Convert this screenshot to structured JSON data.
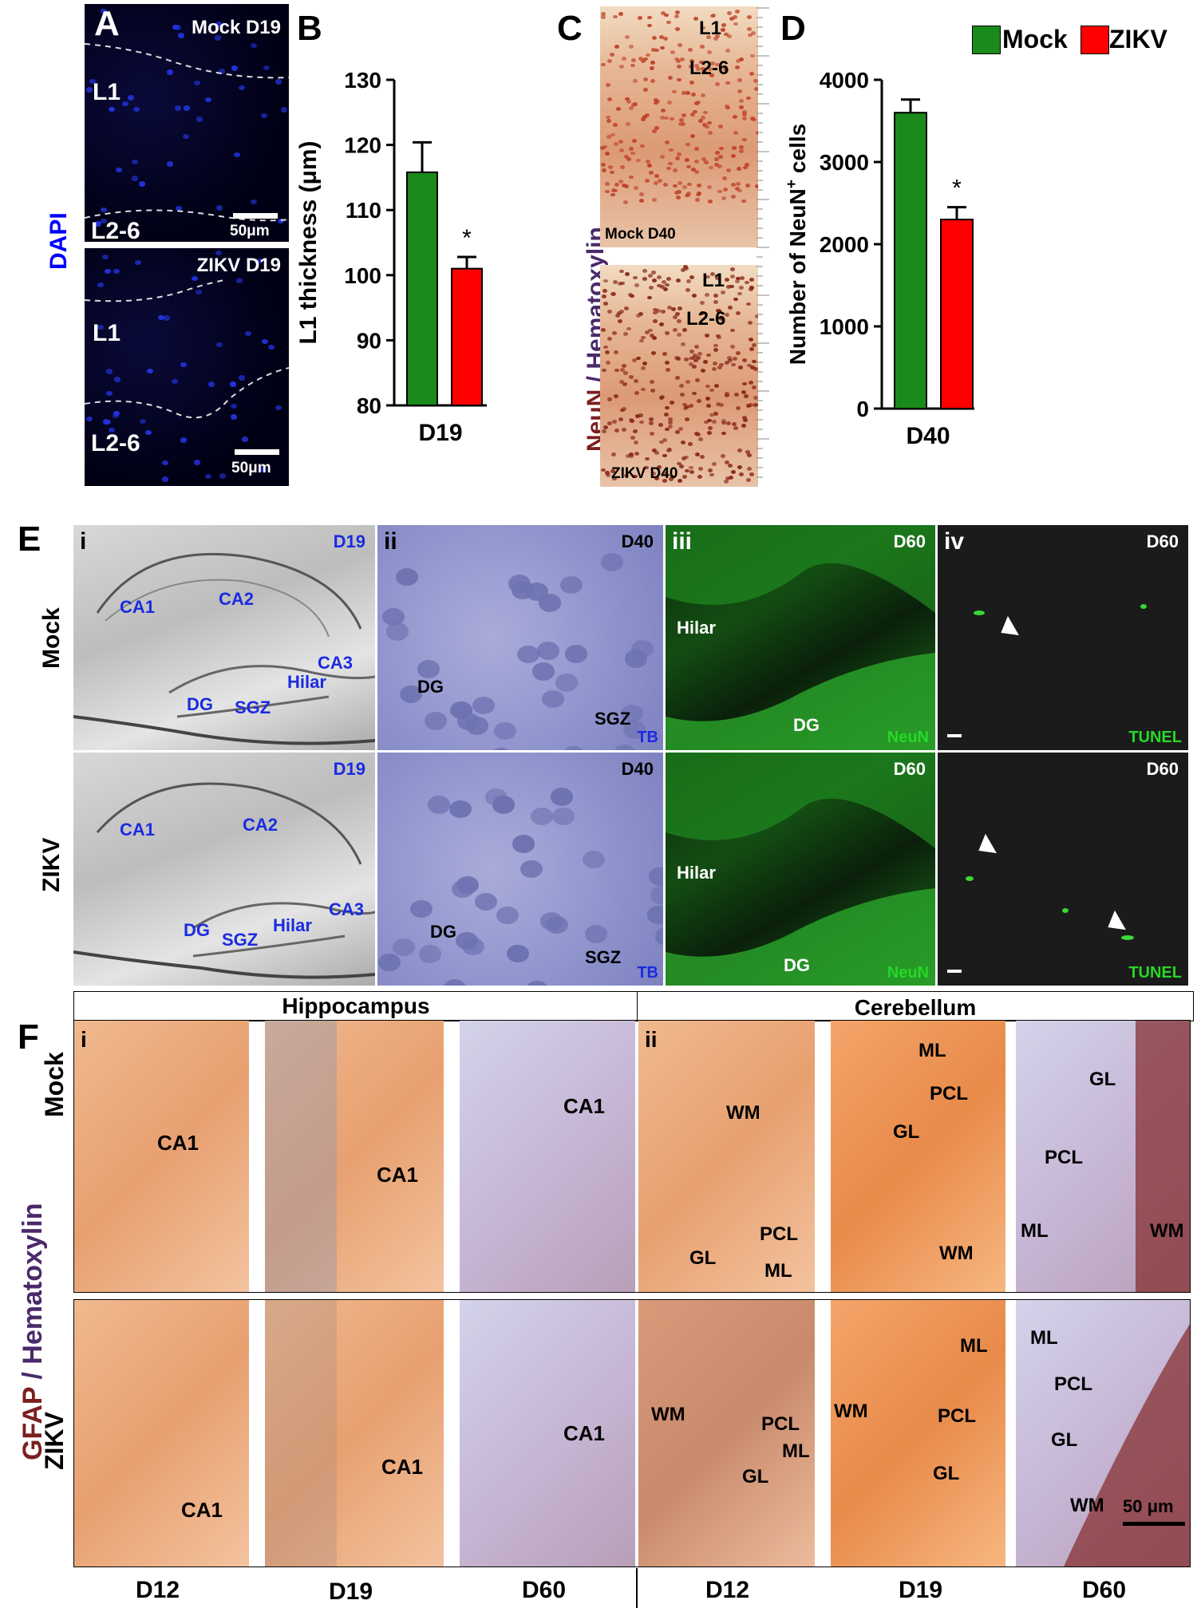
{
  "colors": {
    "mock": "#1a8a1a",
    "zikv": "#ff0000",
    "dapi": "#0000ff",
    "neun_text": "#7b1f1f",
    "hema_text": "#4a2a6a",
    "tunel": "#27d827",
    "fig_blue": "#1a2be0"
  },
  "panel_letters": {
    "A": "A",
    "B": "B",
    "C": "C",
    "D": "D",
    "E": "E",
    "F": "F"
  },
  "panelA": {
    "side_label": "DAPI",
    "top": {
      "tag": "Mock D19",
      "upper": "L1",
      "lower": "L2-6",
      "scale": "50μm"
    },
    "bottom": {
      "tag": "ZIKV D19",
      "upper": "L1",
      "lower": "L2-6",
      "scale": "50μm"
    }
  },
  "legend": {
    "mock": "Mock",
    "zikv": "ZIKV"
  },
  "chartB": {
    "ylabel": "L1 thickness (μm)",
    "xlabel": "D19",
    "star": "*",
    "ticks": [
      "130",
      "120",
      "110",
      "100",
      "90",
      "80"
    ]
  },
  "chartD": {
    "ylabel_pre": "Number of NeuN",
    "ylabel_sup": "+",
    "ylabel_post": " cells",
    "xlabel": "D40",
    "star": "*",
    "ticks": [
      "4000",
      "3000",
      "2000",
      "1000",
      "0"
    ]
  },
  "chart_data": [
    {
      "type": "bar",
      "categories": [
        "D19"
      ],
      "series": [
        {
          "name": "Mock",
          "values": [
            115.8
          ],
          "error": [
            4.6
          ]
        },
        {
          "name": "ZIKV",
          "values": [
            101.0
          ],
          "error": [
            1.8
          ]
        }
      ],
      "title": "",
      "xlabel": "D19",
      "ylabel": "L1 thickness (μm)",
      "ylim": [
        80,
        130
      ],
      "annotations": [
        "*"
      ]
    },
    {
      "type": "bar",
      "categories": [
        "D40"
      ],
      "series": [
        {
          "name": "Mock",
          "values": [
            3600
          ],
          "error": [
            160
          ]
        },
        {
          "name": "ZIKV",
          "values": [
            2300
          ],
          "error": [
            150
          ]
        }
      ],
      "title": "",
      "xlabel": "D40",
      "ylabel": "Number of NeuN+ cells",
      "ylim": [
        0,
        4000
      ],
      "annotations": [
        "*"
      ]
    }
  ],
  "panelC": {
    "side_neun": "NeuN",
    "side_slash": " / ",
    "side_hema": "Hematoxylin",
    "top": {
      "l1": "L1",
      "l26": "L2-6",
      "tag": "Mock D40"
    },
    "bottom": {
      "l1": "L1",
      "l26": "L2-6",
      "tag": "ZIKV D40"
    }
  },
  "panelE": {
    "row_mock": "Mock",
    "row_zikv": "ZIKV",
    "mock": {
      "i": {
        "roman": "i",
        "day": "D19",
        "CA1": "CA1",
        "CA2": "CA2",
        "CA3": "CA3",
        "Hilar": "Hilar",
        "DG": "DG",
        "SGZ": "SGZ"
      },
      "ii": {
        "roman": "ii",
        "day": "D40",
        "DG": "DG",
        "SGZ": "SGZ",
        "TB": "TB"
      },
      "iii": {
        "roman": "iii",
        "day": "D60",
        "Hilar": "Hilar",
        "DG": "DG",
        "NeuN": "NeuN"
      },
      "iv": {
        "roman": "iv",
        "day": "D60",
        "TUNEL": "TUNEL"
      }
    },
    "zikv": {
      "i": {
        "day": "D19",
        "CA1": "CA1",
        "CA2": "CA2",
        "CA3": "CA3",
        "Hilar": "Hilar",
        "DG": "DG",
        "SGZ": "SGZ"
      },
      "ii": {
        "day": "D40",
        "DG": "DG",
        "SGZ": "SGZ",
        "TB": "TB"
      },
      "iii": {
        "day": "D60",
        "Hilar": "Hilar",
        "DG": "DG",
        "NeuN": "NeuN"
      },
      "iv": {
        "day": "D60",
        "TUNEL": "TUNEL"
      }
    }
  },
  "panelF": {
    "header_hippo": "Hippocampus",
    "header_cereb": "Cerebellum",
    "side_gfap": "GFAP",
    "side_slash": " / ",
    "side_hema": "Hematoxylin",
    "row_mock": "Mock",
    "row_zikv": "ZIKV",
    "roman_i": "i",
    "roman_ii": "ii",
    "days": [
      "D12",
      "D19",
      "D60",
      "D12",
      "D19",
      "D60"
    ],
    "scale": "50 μm",
    "mock": {
      "h12": [
        "CA1"
      ],
      "h19": [
        "CA1"
      ],
      "h60": [
        "CA1"
      ],
      "c12": {
        "WM": "WM",
        "PCL": "PCL",
        "GL": "GL",
        "ML": "ML"
      },
      "c19": {
        "ML": "ML",
        "PCL": "PCL",
        "GL": "GL",
        "WM": "WM"
      },
      "c60": {
        "GL": "GL",
        "PCL": "PCL",
        "ML": "ML",
        "WM": "WM"
      }
    },
    "zikv": {
      "h12": [
        "CA1"
      ],
      "h19": [
        "CA1"
      ],
      "h60": [
        "CA1"
      ],
      "c12": {
        "WM": "WM",
        "PCL": "PCL",
        "ML": "ML",
        "GL": "GL"
      },
      "c19": {
        "ML": "ML",
        "WM": "WM",
        "PCL": "PCL",
        "GL": "GL"
      },
      "c60": {
        "ML": "ML",
        "PCL": "PCL",
        "GL": "GL",
        "WM": "WM"
      }
    }
  }
}
